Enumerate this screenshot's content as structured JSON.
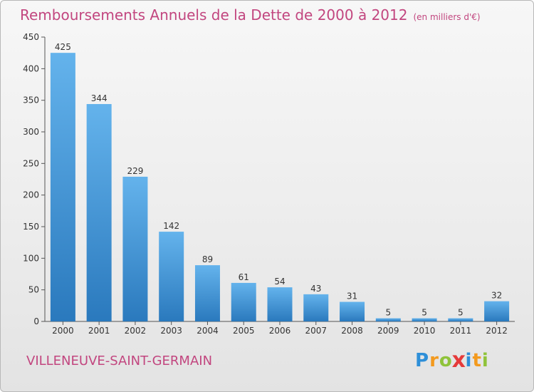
{
  "title": "Remboursements Annuels de la Dette de 2000 à 2012",
  "unit": "(en milliers d'€)",
  "commune": "VILLENEUVE-SAINT-GERMAIN",
  "logo": {
    "text": "Proxiti",
    "letters": [
      {
        "char": "P",
        "color": "#2e8fd8"
      },
      {
        "char": "r",
        "color": "#f39a1e"
      },
      {
        "char": "o",
        "color": "#8fc33a"
      },
      {
        "char": "x",
        "color": "#e53a3a"
      },
      {
        "char": "i",
        "color": "#2e8fd8"
      },
      {
        "char": "t",
        "color": "#f39a1e"
      },
      {
        "char": "i",
        "color": "#8fc33a"
      }
    ]
  },
  "colors": {
    "title": "#c2467f",
    "bar_light": "#64b3ec",
    "bar_dark": "#2a79bd"
  },
  "chart_data": {
    "type": "bar",
    "title": "Remboursements Annuels de la Dette de 2000 à 2012",
    "subtitle": "(en milliers d'€)",
    "categories": [
      "2000",
      "2001",
      "2002",
      "2003",
      "2004",
      "2005",
      "2006",
      "2007",
      "2008",
      "2009",
      "2010",
      "2011",
      "2012"
    ],
    "values": [
      425,
      344,
      229,
      142,
      89,
      61,
      54,
      43,
      31,
      5,
      5,
      5,
      32
    ],
    "yticks": [
      0,
      50,
      100,
      150,
      200,
      250,
      300,
      350,
      400,
      450
    ],
    "ylim": [
      0,
      450
    ],
    "xlabel": "",
    "ylabel": "",
    "grid": false,
    "data_labels": true
  }
}
